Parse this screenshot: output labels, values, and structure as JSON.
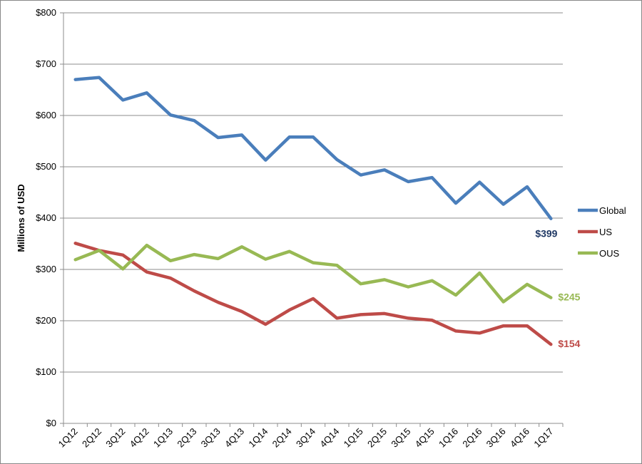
{
  "chart_data": {
    "type": "line",
    "title": "",
    "xlabel": "",
    "ylabel": "Millions of USD",
    "y_tick_labels": [
      "$0",
      "$100",
      "$200",
      "$300",
      "$400",
      "$500",
      "$600",
      "$700",
      "$800"
    ],
    "ylim": [
      0,
      800
    ],
    "grid": true,
    "legend_position": "right",
    "categories": [
      "1Q12",
      "2Q12",
      "3Q12",
      "4Q12",
      "1Q13",
      "2Q13",
      "3Q13",
      "4Q13",
      "1Q14",
      "2Q14",
      "3Q14",
      "4Q14",
      "1Q15",
      "2Q15",
      "3Q15",
      "4Q15",
      "1Q16",
      "2Q16",
      "3Q16",
      "4Q16",
      "1Q17"
    ],
    "series": [
      {
        "name": "Global",
        "color": "#4A7EBB",
        "label_color": "#1F3864",
        "values": [
          670,
          674,
          630,
          644,
          601,
          590,
          557,
          562,
          513,
          558,
          558,
          514,
          484,
          494,
          471,
          479,
          429,
          470,
          427,
          461,
          399
        ],
        "end_label": "$399"
      },
      {
        "name": "US",
        "color": "#BE4B48",
        "label_color": "#BE4B48",
        "values": [
          351,
          337,
          328,
          295,
          283,
          258,
          236,
          218,
          193,
          221,
          243,
          205,
          212,
          214,
          205,
          201,
          180,
          176,
          190,
          190,
          154
        ],
        "end_label": "$154"
      },
      {
        "name": "OUS",
        "color": "#98B954",
        "label_color": "#98B954",
        "values": [
          319,
          337,
          301,
          347,
          317,
          329,
          321,
          344,
          320,
          335,
          313,
          308,
          272,
          280,
          266,
          278,
          250,
          293,
          237,
          271,
          245
        ],
        "end_label": "$245"
      }
    ]
  }
}
